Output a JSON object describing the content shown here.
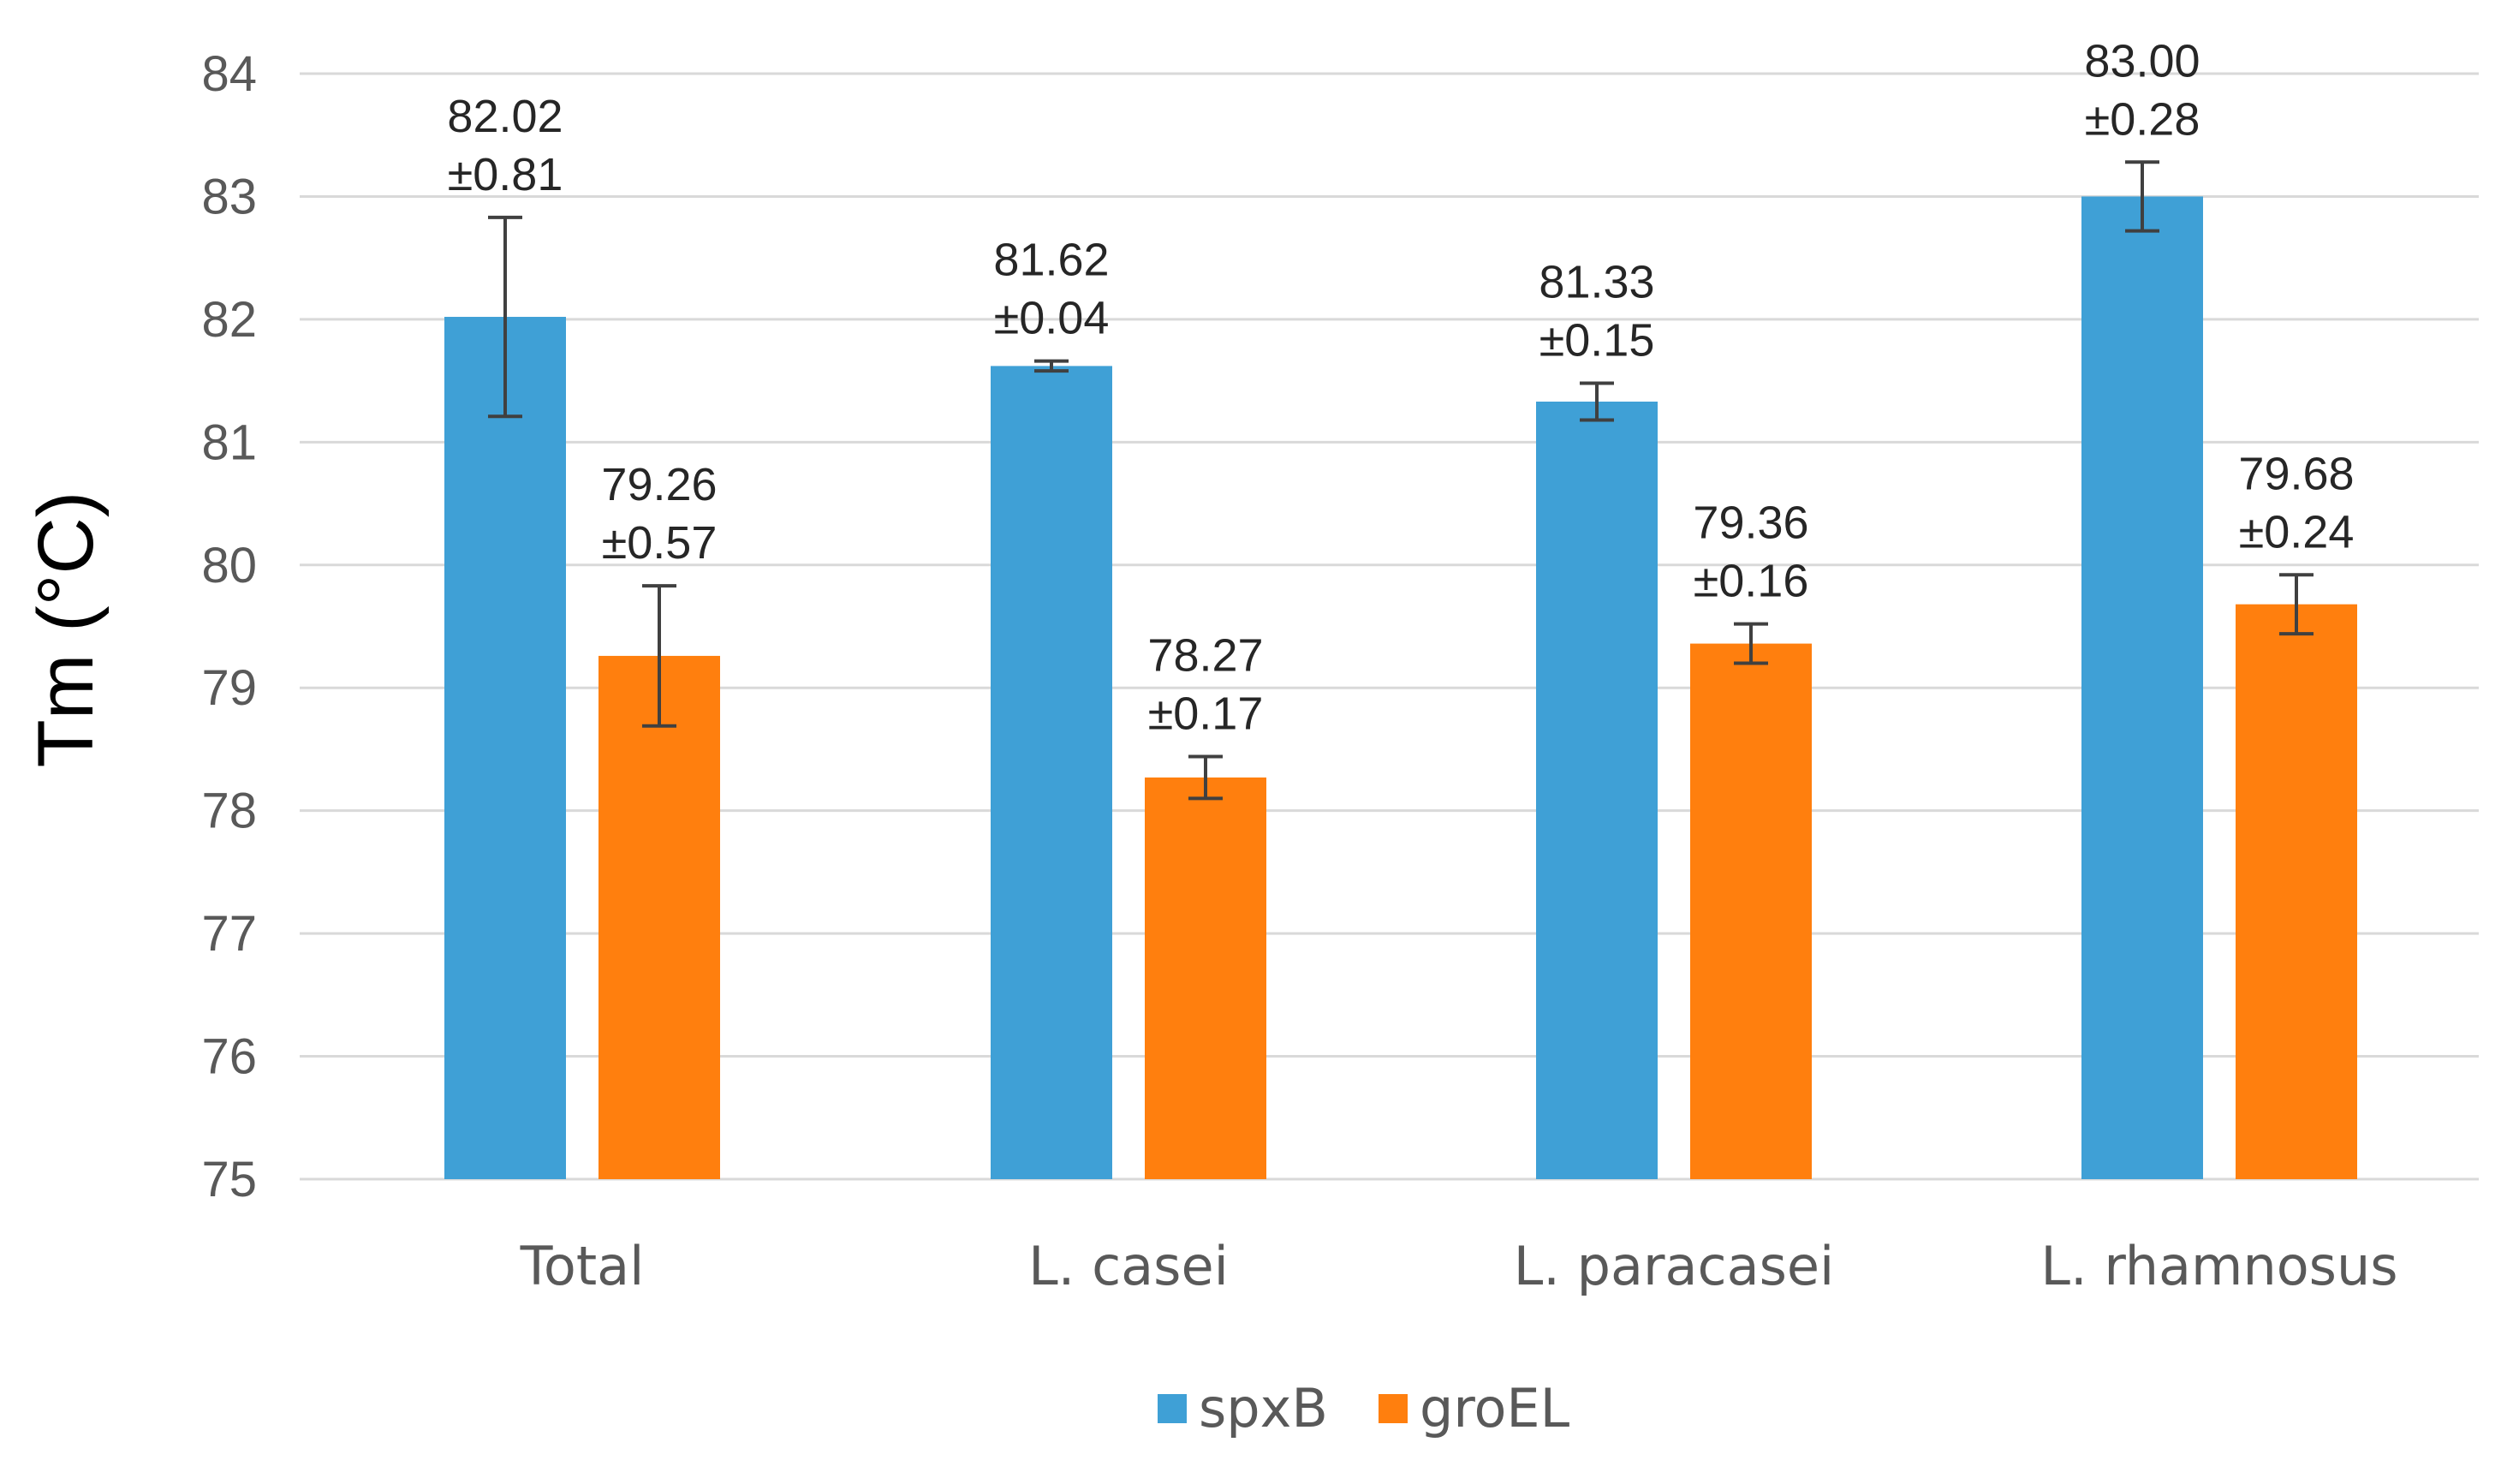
{
  "chart_data": {
    "type": "bar",
    "title": "",
    "xlabel": "",
    "ylabel": "Tm (°C)",
    "ylim": [
      75,
      84
    ],
    "yticks": [
      75,
      76,
      77,
      78,
      79,
      80,
      81,
      82,
      83,
      84
    ],
    "grid": true,
    "categories": [
      "Total",
      "L. casei",
      "L. paracasei",
      "L. rhamnosus"
    ],
    "series": [
      {
        "name": "spxB",
        "color": "#3fa0d6",
        "values": [
          82.02,
          81.62,
          81.33,
          83.0
        ],
        "errors": [
          0.81,
          0.04,
          0.15,
          0.28
        ],
        "value_labels": [
          "82.02",
          "81.62",
          "81.33",
          "83.00"
        ],
        "error_labels": [
          "±0.81",
          "±0.04",
          "±0.15",
          "±0.28"
        ]
      },
      {
        "name": "groEL",
        "color": "#ff7f0e",
        "values": [
          79.26,
          78.27,
          79.36,
          79.68
        ],
        "errors": [
          0.57,
          0.17,
          0.16,
          0.24
        ],
        "value_labels": [
          "79.26",
          "78.27",
          "79.36",
          "79.68"
        ],
        "error_labels": [
          "±0.57",
          "±0.17",
          "±0.16",
          "±0.24"
        ]
      }
    ],
    "legend": {
      "position": "bottom-center",
      "entries": [
        "spxB",
        "groEL"
      ]
    }
  }
}
